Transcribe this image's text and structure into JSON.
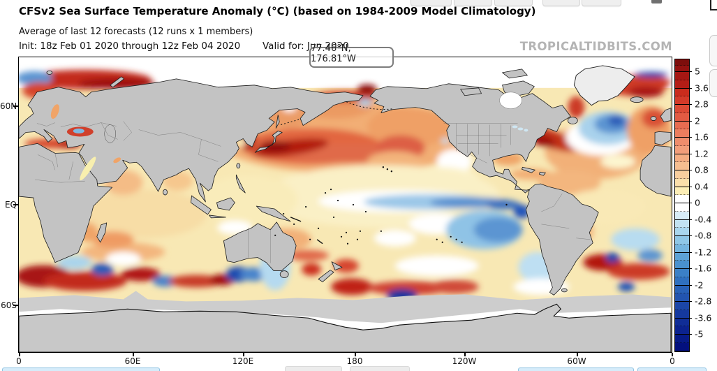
{
  "header": {
    "title": "CFSv2 Sea Surface Temperature Anomaly (°C) (based on 1984-2009 Model Climatology)",
    "subtitle": "Average of last 12 forecasts (12 runs x 1 members)",
    "init_label": "Init: 18z Feb 01 2020 through 12z Feb 04 2020",
    "valid_label": "Valid for: Jun 2020",
    "watermark": "TROPICALTIDBITS.COM"
  },
  "tooltip": {
    "text": "77.46°N, 176.81°W"
  },
  "map": {
    "lat_ticks": [
      "60N",
      "EQ",
      "60S"
    ],
    "lon_ticks": [
      "0",
      "60E",
      "120E",
      "180",
      "120W",
      "60W",
      "0"
    ],
    "colors": {
      "land": "#c3c3c3",
      "coast": "#1c1c1c",
      "ocean_base": "#f8e8b4",
      "arctic_ice": "#ffffff",
      "sea_ice_band": "#cdcdcd",
      "antarctica": "#c8c8c8"
    }
  },
  "colorbar": {
    "labels": [
      "5",
      "3.6",
      "2.8",
      "2",
      "1.6",
      "1.2",
      "0.8",
      "0.4",
      "0",
      "-0.4",
      "-0.8",
      "-1.2",
      "-1.6",
      "-2",
      "-2.8",
      "-3.6",
      "-5"
    ],
    "segment_colors": [
      [
        "#7d0e0c",
        "#941210"
      ],
      [
        "#a61713",
        "#b41d16"
      ],
      [
        "#c92c1d",
        "#d33a29"
      ],
      [
        "#dc4a35",
        "#e25b43"
      ],
      [
        "#e86c51",
        "#ec7d5e"
      ],
      [
        "#ef8d6c",
        "#f29e7a"
      ],
      [
        "#f4ad82",
        "#f6be90"
      ],
      [
        "#f8cf9e",
        "#fbdfaa"
      ],
      [
        "#fdeeb6",
        "#ffffff"
      ],
      [
        "#ffffff",
        "#d8ecf7"
      ],
      [
        "#c2e2f2",
        "#a9d6ee"
      ],
      [
        "#8fc7e7",
        "#75b5df"
      ],
      [
        "#5da3d7",
        "#4991cf"
      ],
      [
        "#3b80c6",
        "#2f70bf"
      ],
      [
        "#2861b7",
        "#2254af"
      ],
      [
        "#1b46a7",
        "#15399f"
      ],
      [
        "#102d97",
        "#0b228f"
      ],
      [
        "#071a87",
        "#03107e"
      ]
    ]
  }
}
